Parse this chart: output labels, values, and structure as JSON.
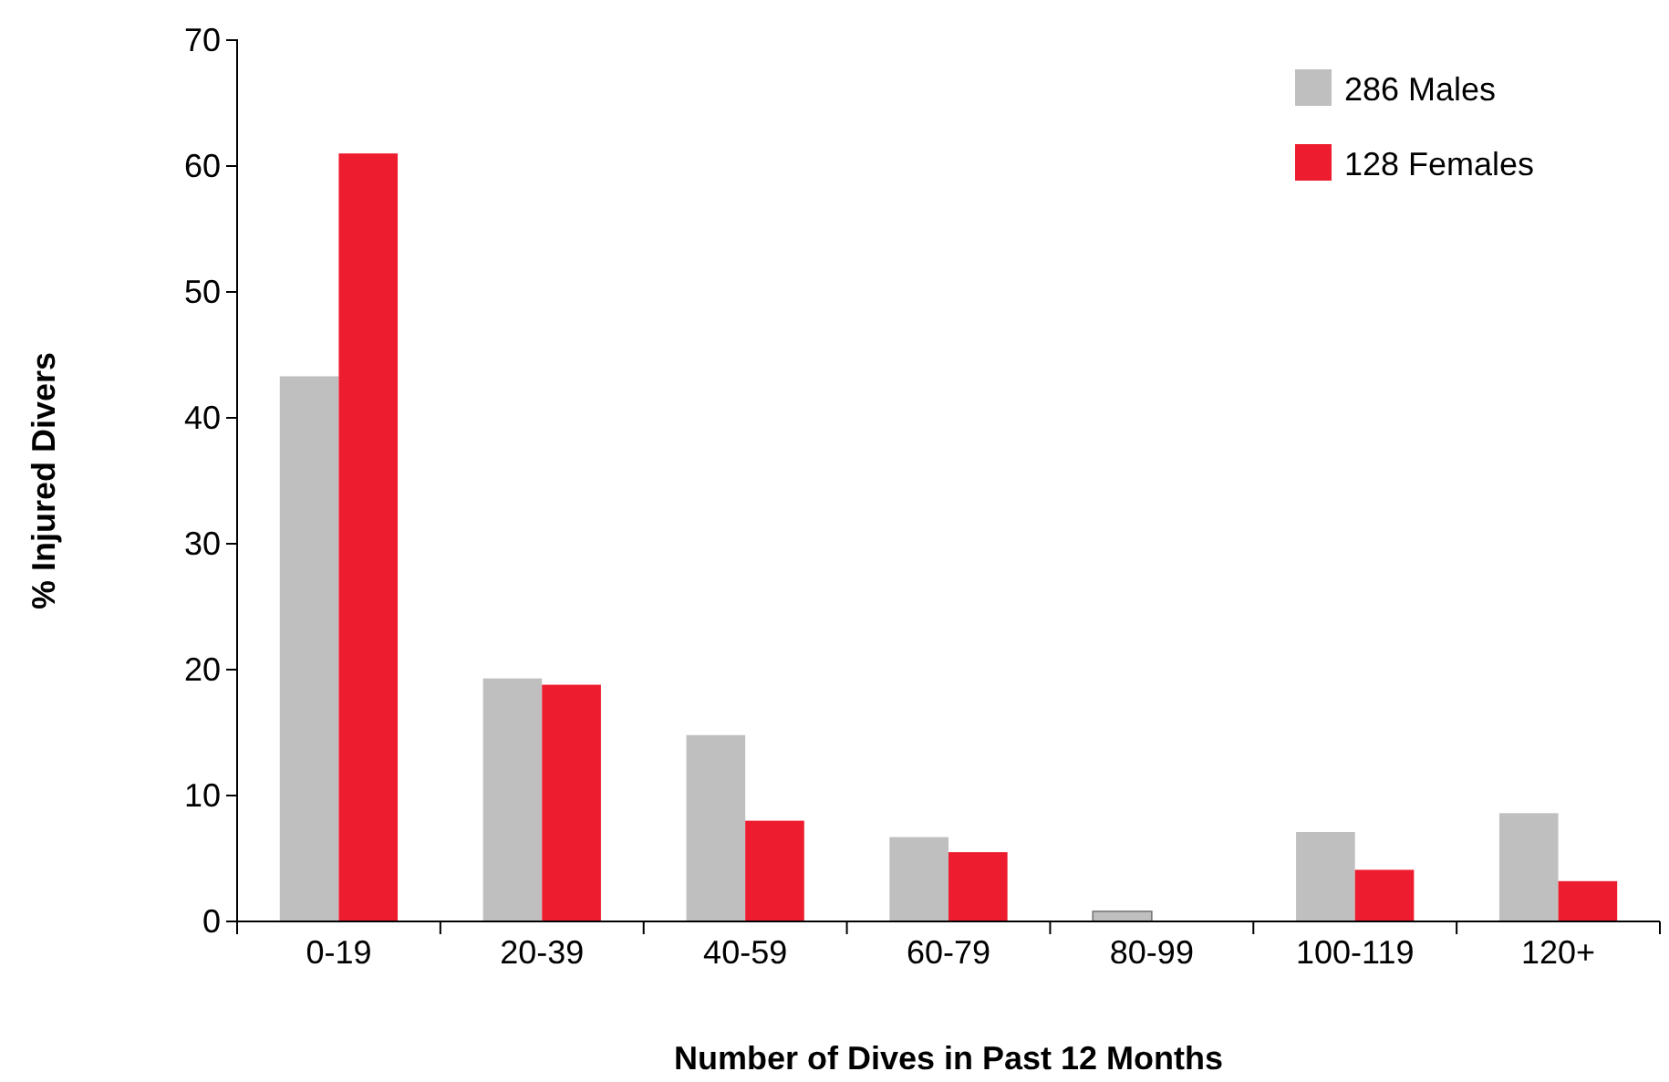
{
  "chart_data": {
    "type": "bar",
    "xlabel": "Number of Dives in Past 12 Months",
    "ylabel": "% Injured Divers",
    "categories": [
      "0-19",
      "20-39",
      "40-59",
      "60-79",
      "80-99",
      "100-119",
      "120+"
    ],
    "series": [
      {
        "name": "286 Males",
        "color": "#bfbfbf",
        "values": [
          43.3,
          19.3,
          14.8,
          6.7,
          0.8,
          7.1,
          8.6
        ]
      },
      {
        "name": "128 Females",
        "color": "#ed1c2e",
        "values": [
          61.0,
          18.8,
          8.0,
          5.5,
          0,
          4.1,
          3.2
        ]
      }
    ],
    "ylim": [
      0,
      70
    ],
    "yticks": [
      0,
      10,
      20,
      30,
      40,
      50,
      60,
      70
    ],
    "grid": false,
    "legend": "top right"
  }
}
